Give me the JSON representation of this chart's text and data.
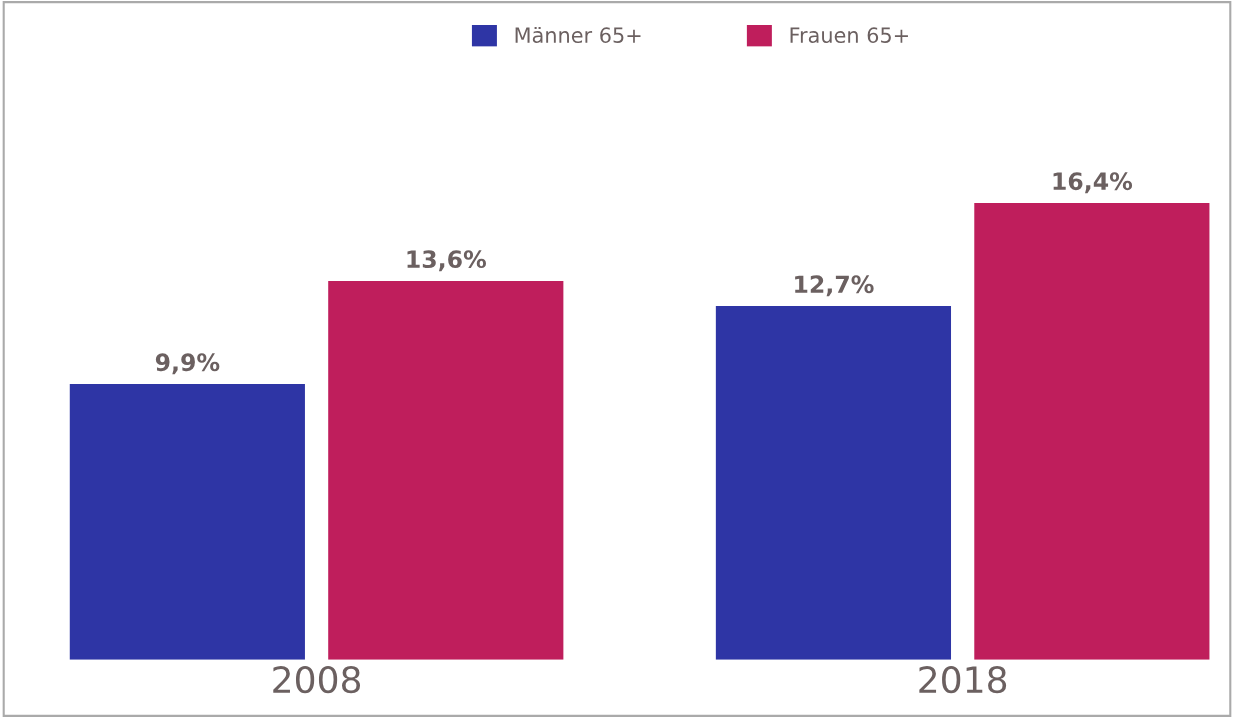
{
  "chart_data": {
    "type": "bar",
    "categories": [
      "2008",
      "2018"
    ],
    "series": [
      {
        "name": "Männer 65+",
        "color": "#2e35a5",
        "values": [
          9.9,
          12.7
        ],
        "value_labels": [
          "9,9%",
          "12,7%"
        ]
      },
      {
        "name": "Frauen 65+",
        "color": "#bf1e5c",
        "values": [
          13.6,
          16.4
        ],
        "value_labels": [
          "13,6%",
          "16,4%"
        ]
      }
    ],
    "tick_labels": "x",
    "legend": "top",
    "grid": false
  }
}
